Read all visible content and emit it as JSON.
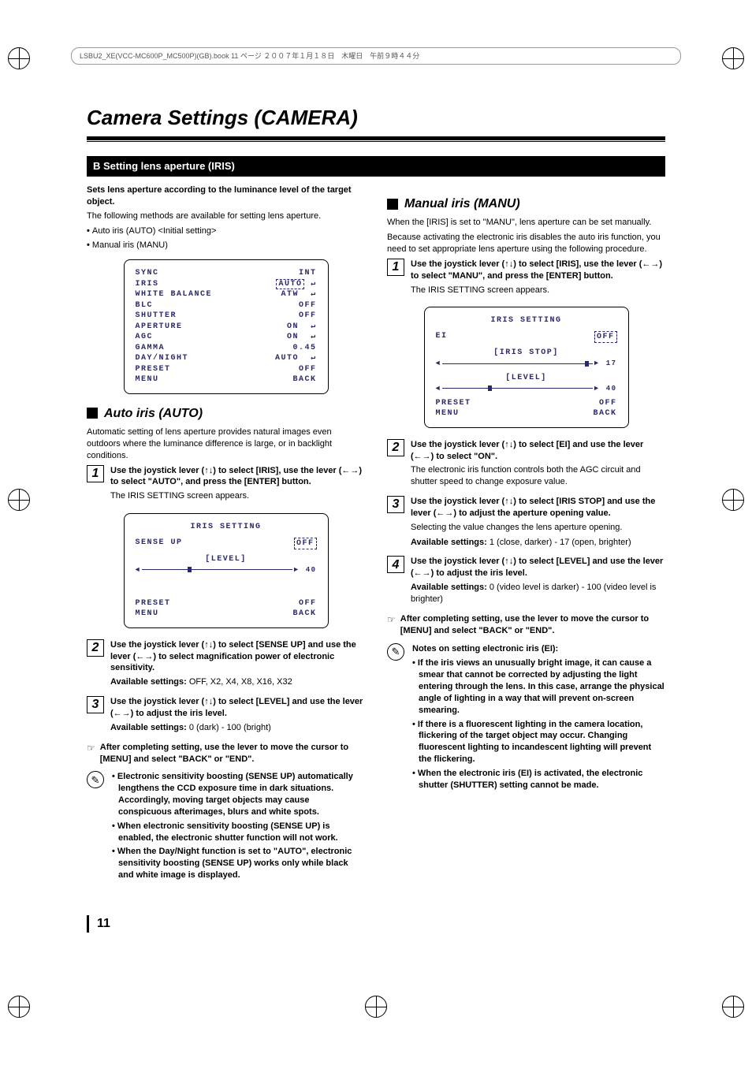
{
  "print_header": "LSBU2_XE(VCC-MC600P_MC500P)(GB).book  11 ページ  ２００７年１月１８日　木曜日　午前９時４４分",
  "title": "Camera Settings (CAMERA)",
  "section_bar": "B  Setting lens aperture (IRIS)",
  "left": {
    "lead": "Sets lens aperture according to the luminance level of the target object.",
    "intro": "The following methods are available for setting lens aperture.",
    "methods": [
      "Auto iris (AUTO) <Initial setting>",
      "Manual iris (MANU)"
    ],
    "menu1": {
      "rows": [
        [
          "SYNC",
          "INT"
        ],
        [
          "IRIS",
          "AUTO"
        ],
        [
          "WHITE BALANCE",
          "ATW"
        ],
        [
          "BLC",
          "OFF"
        ],
        [
          "SHUTTER",
          "OFF"
        ],
        [
          "APERTURE",
          "ON"
        ],
        [
          "AGC",
          "ON"
        ],
        [
          "GAMMA",
          "0.45"
        ],
        [
          "DAY/NIGHT",
          "AUTO"
        ],
        [
          "",
          ""
        ],
        [
          "PRESET",
          "OFF"
        ],
        [
          "MENU",
          "BACK"
        ]
      ],
      "highlight_row": 1,
      "arrow_rows": [
        1,
        2,
        5,
        6,
        8
      ]
    },
    "auto_h": "Auto iris (AUTO)",
    "auto_intro": "Automatic setting of lens aperture provides natural images even outdoors where the luminance difference is large, or in backlight conditions.",
    "steps_auto": [
      {
        "n": "1",
        "t": "Use the joystick lever (↑↓) to select [IRIS], use the lever (←→) to select \"AUTO\", and press the [ENTER] button.",
        "p": "The IRIS SETTING screen appears."
      },
      {
        "n": "2",
        "t": "Use the joystick lever (↑↓) to select [SENSE UP] and use the lever (←→) to select magnification power of electronic sensitivity.",
        "avail": "OFF, X2, X4, X8, X16, X32"
      },
      {
        "n": "3",
        "t": "Use the joystick lever (↑↓) to select [LEVEL] and use the lever (←→) to adjust the iris level.",
        "avail": "0 (dark) - 100 (bright)"
      }
    ],
    "menu_auto": {
      "title": "IRIS SETTING",
      "sense_label": "SENSE UP",
      "sense_val": "OFF",
      "level_label": "[LEVEL]",
      "level_val": "40",
      "preset": "PRESET",
      "preset_v": "OFF",
      "menu": "MENU",
      "menu_v": "BACK",
      "thumb_pct": 30
    },
    "pointer_auto": "After completing setting, use the lever to move the cursor to [MENU] and select \"BACK\" or \"END\".",
    "notes_auto": [
      "Electronic sensitivity boosting (SENSE UP) automatically lengthens the CCD exposure time in dark situations. Accordingly, moving target objects may cause conspicuous afterimages, blurs and white spots.",
      "When electronic sensitivity boosting (SENSE UP) is enabled, the electronic shutter function will not work.",
      "When the Day/Night function is set to \"AUTO\", electronic sensitivity boosting (SENSE UP) works only while black and white image is displayed."
    ]
  },
  "right": {
    "manu_h": "Manual iris (MANU)",
    "manu_intro1": "When the [IRIS] is set to \"MANU\", lens aperture can be set manually.",
    "manu_intro2": "Because activating the electronic iris disables the auto iris function, you need to set appropriate lens aperture using the following procedure.",
    "steps_manu": [
      {
        "n": "1",
        "t": "Use the joystick lever (↑↓) to select [IRIS], use the lever (←→) to select \"MANU\", and press the [ENTER] button.",
        "p": "The IRIS SETTING screen appears."
      },
      {
        "n": "2",
        "t": "Use the joystick lever (↑↓) to select [EI] and use the lever (←→) to select \"ON\".",
        "p": "The electronic iris function controls both the AGC circuit and shutter speed to change exposure value."
      },
      {
        "n": "3",
        "t": "Use the joystick lever (↑↓) to select [IRIS STOP] and use the lever (←→) to adjust the aperture opening value.",
        "p": "Selecting the value changes the lens aperture opening.",
        "avail": "1 (close, darker) - 17 (open, brighter)"
      },
      {
        "n": "4",
        "t": "Use the joystick lever (↑↓) to select [LEVEL] and use the lever (←→) to adjust the iris level.",
        "avail": "0 (video level is darker) - 100 (video level is brighter)"
      }
    ],
    "menu_manu": {
      "title": "IRIS SETTING",
      "ei": "EI",
      "ei_v": "OFF",
      "stop_label": "[IRIS STOP]",
      "stop_val": "17",
      "stop_thumb_pct": 95,
      "level_label": "[LEVEL]",
      "level_val": "40",
      "level_thumb_pct": 30,
      "preset": "PRESET",
      "preset_v": "OFF",
      "menu": "MENU",
      "menu_v": "BACK"
    },
    "pointer_manu": "After completing setting, use the lever to move the cursor to [MENU] and select \"BACK\" or \"END\".",
    "notes_title": "Notes on setting electronic iris (EI):",
    "notes_manu": [
      "If the iris views an unusually bright image, it can cause a smear that cannot be corrected by adjusting the light entering through the lens. In this case, arrange the physical angle of lighting in a way that will prevent on-screen smearing.",
      "If there is a fluorescent lighting in the camera location, flickering of the target object may occur. Changing fluorescent lighting to incandescent lighting will prevent the flickering.",
      "When the electronic iris (EI) is activated, the electronic shutter (SHUTTER) setting cannot be made."
    ]
  },
  "avail_label": "Available settings:",
  "page_number": "11"
}
